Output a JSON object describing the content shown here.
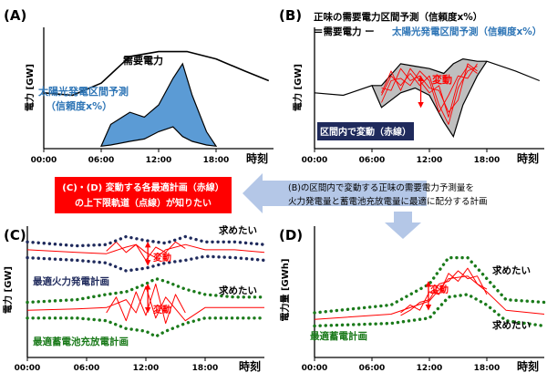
{
  "colors": {
    "demand": "#000000",
    "solar_fill": "#5b9bd5",
    "solar_text": "#2e75b6",
    "net_fill": "#bfbfbf",
    "red": "#ff0000",
    "navy": "#1f2a5c",
    "green": "#1a7a1a",
    "arrow": "#b4c7e7",
    "callout_bg": "#ff0000",
    "badge_bg": "#1f2a5c"
  },
  "common": {
    "x_ticks": [
      "00:00",
      "06:00",
      "12:00",
      "18:00"
    ],
    "x_axis_title": "時刻",
    "variation": "変動",
    "want": "求めたい"
  },
  "panel_a": {
    "label": "(A)",
    "y_axis_title": "電力 [GW]",
    "demand_label": "需要電力",
    "solar_label_line1": "太陽光発電区間予測",
    "solar_label_line2": "（信頼度x%）"
  },
  "panel_b": {
    "label": "(B)",
    "y_axis_title": "電力 [GW]",
    "formula_line1": "正味の需要電力区間予測（信頼度x%）",
    "formula_line2_prefix": "＝需要電力 ー",
    "formula_line2_highlight": "太陽光発電区間予測（信頼度x%）",
    "badge": "区間内で変動（赤線）"
  },
  "callout": {
    "line1": "(C)・(D) 変動する各最適計画（赤線）",
    "line2": "の上下限軌道（点線）が知りたい"
  },
  "note": {
    "line1": "(B)の区間内で変動する正味の需要電力予測量を",
    "line2": "火力発電量と蓄電池充放電量に最適に配分する計画"
  },
  "panel_c": {
    "label": "(C)",
    "y_axis_title": "電力 [GW]",
    "thermal_label": "最適火力発電計画",
    "battery_label": "最適蓄電池充放電計画"
  },
  "panel_d": {
    "label": "(D)",
    "y_axis_title": "電力量 [GWh]",
    "storage_label": "最適蓄電計画"
  },
  "chart_data": [
    {
      "panel": "A",
      "type": "area",
      "x_hours": [
        0,
        6,
        12,
        18,
        24
      ],
      "x_tick_labels": [
        "00:00",
        "06:00",
        "12:00",
        "18:00"
      ],
      "xlabel": "時刻",
      "ylabel": "電力 [GW]",
      "series": [
        {
          "name": "需要電力",
          "kind": "line",
          "x": [
            0,
            3,
            6,
            9,
            12,
            15,
            18,
            21,
            23.5
          ],
          "y": [
            46,
            44,
            54,
            76,
            80,
            80,
            74,
            64,
            56
          ]
        },
        {
          "name": "太陽光発電区間予測 上限",
          "kind": "band_upper",
          "x": [
            6,
            7,
            9,
            10.5,
            12,
            13.5,
            14.5,
            15.5,
            17,
            18
          ],
          "y": [
            2,
            20,
            30,
            26,
            36,
            58,
            70,
            44,
            14,
            2
          ]
        },
        {
          "name": "太陽光発電区間予測 下限",
          "kind": "band_lower",
          "x": [
            6,
            7,
            9,
            10.5,
            12,
            13.5,
            14.5,
            15.5,
            17,
            18
          ],
          "y": [
            2,
            3,
            6,
            8,
            14,
            18,
            10,
            6,
            3,
            2
          ]
        }
      ],
      "ylim": [
        0,
        100
      ]
    },
    {
      "panel": "B",
      "type": "area",
      "x_hours": [
        0,
        6,
        12,
        18,
        24
      ],
      "x_tick_labels": [
        "00:00",
        "06:00",
        "12:00",
        "18:00"
      ],
      "xlabel": "時刻",
      "ylabel": "電力 [GW]",
      "series": [
        {
          "name": "正味需要 上限",
          "kind": "band_upper",
          "x": [
            0,
            3,
            6,
            7,
            9,
            10.5,
            12,
            13.5,
            14.5,
            15.5,
            17,
            18,
            21,
            23.5
          ],
          "y": [
            46,
            44,
            52,
            52,
            70,
            68,
            66,
            62,
            70,
            74,
            72,
            72,
            64,
            56
          ]
        },
        {
          "name": "正味需要 下限",
          "kind": "band_lower",
          "x": [
            0,
            3,
            6,
            7,
            9,
            10.5,
            12,
            13.5,
            14.5,
            15.5,
            17,
            18,
            21,
            23.5
          ],
          "y": [
            46,
            44,
            52,
            34,
            46,
            50,
            44,
            22,
            10,
            36,
            60,
            72,
            64,
            56
          ]
        },
        {
          "name": "変動 (赤線) 1",
          "kind": "variation",
          "x": [
            7,
            8,
            9,
            10,
            11,
            12,
            13,
            14,
            15,
            16,
            17
          ],
          "y": [
            44,
            60,
            52,
            62,
            52,
            60,
            36,
            20,
            50,
            64,
            68
          ]
        },
        {
          "name": "変動 (赤線) 2",
          "kind": "variation",
          "x": [
            7,
            8,
            9,
            10,
            11,
            12,
            13,
            14,
            15,
            16,
            17
          ],
          "y": [
            50,
            48,
            66,
            56,
            60,
            50,
            48,
            30,
            40,
            70,
            64
          ]
        },
        {
          "name": "変動 (赤線) 3",
          "kind": "variation",
          "x": [
            7,
            8,
            9,
            10,
            11,
            12,
            13,
            14,
            15,
            16,
            17
          ],
          "y": [
            38,
            56,
            58,
            52,
            64,
            56,
            30,
            44,
            60,
            58,
            70
          ]
        },
        {
          "name": "変動 (赤線) 4",
          "kind": "variation",
          "x": [
            7,
            8,
            9,
            10,
            11,
            12,
            13,
            14,
            15,
            16,
            17
          ],
          "y": [
            46,
            64,
            48,
            66,
            56,
            46,
            52,
            26,
            56,
            68,
            62
          ]
        }
      ],
      "ylim": [
        0,
        100
      ]
    },
    {
      "panel": "C",
      "type": "line",
      "x_hours": [
        0,
        6,
        12,
        18,
        24
      ],
      "x_tick_labels": [
        "00:00",
        "06:00",
        "12:00",
        "18:00"
      ],
      "xlabel": "時刻",
      "ylabel": "電力 [GW]",
      "series": [
        {
          "name": "最適火力発電計画 上限 (点線)",
          "kind": "bound",
          "group": "thermal",
          "x": [
            0,
            5,
            8,
            10,
            12,
            14,
            16,
            18,
            21,
            24
          ],
          "y": [
            88,
            85,
            86,
            92,
            89,
            87,
            92,
            88,
            88,
            86
          ]
        },
        {
          "name": "最適火力発電計画 下限 (点線)",
          "kind": "bound",
          "group": "thermal",
          "x": [
            0,
            5,
            8,
            10,
            12,
            14,
            16,
            18,
            21,
            24
          ],
          "y": [
            76,
            74,
            72,
            66,
            68,
            72,
            74,
            77,
            76,
            74
          ]
        },
        {
          "name": "最適火力発電計画 (赤線)",
          "kind": "variation",
          "group": "thermal",
          "x": [
            0,
            5,
            8,
            10,
            11,
            12,
            13,
            14,
            16,
            18,
            21,
            24
          ],
          "y": [
            82,
            80,
            79,
            84,
            86,
            80,
            76,
            82,
            86,
            82,
            82,
            80
          ]
        },
        {
          "name": "最適火力発電計画 変動",
          "kind": "variation",
          "group": "thermal",
          "x": [
            8,
            9,
            10,
            11,
            12,
            13,
            14,
            15,
            16
          ],
          "y": [
            81,
            88,
            80,
            86,
            74,
            84,
            80,
            88,
            83
          ]
        },
        {
          "name": "最適蓄電池充放電計画 上限 (点線)",
          "kind": "bound",
          "group": "battery",
          "x": [
            0,
            5,
            8,
            10,
            12,
            13,
            14,
            16,
            18,
            21,
            24
          ],
          "y": [
            42,
            44,
            48,
            50,
            56,
            60,
            58,
            52,
            48,
            46,
            46
          ]
        },
        {
          "name": "最適蓄電池充放電計画 下限 (点線)",
          "kind": "bound",
          "group": "battery",
          "x": [
            0,
            5,
            8,
            10,
            12,
            13,
            14,
            16,
            18,
            21,
            24
          ],
          "y": [
            30,
            30,
            28,
            22,
            20,
            16,
            20,
            26,
            30,
            30,
            30
          ]
        },
        {
          "name": "最適蓄電池充放電計画 (赤線)",
          "kind": "variation",
          "group": "battery",
          "x": [
            0,
            5,
            8,
            10,
            11,
            12,
            13,
            14,
            16,
            18,
            21,
            24
          ],
          "y": [
            36,
            37,
            38,
            44,
            34,
            54,
            30,
            46,
            28,
            38,
            38,
            38
          ]
        },
        {
          "name": "最適蓄電池充放電計画 変動",
          "kind": "variation",
          "group": "battery",
          "x": [
            8,
            9,
            10,
            11,
            12,
            13,
            14,
            15,
            16
          ],
          "y": [
            34,
            46,
            28,
            50,
            32,
            56,
            26,
            48,
            34
          ]
        }
      ],
      "ylim": [
        0,
        100
      ]
    },
    {
      "panel": "D",
      "type": "line",
      "x_hours": [
        0,
        6,
        12,
        18,
        24
      ],
      "x_tick_labels": [
        "00:00",
        "06:00",
        "12:00",
        "18:00"
      ],
      "xlabel": "時刻",
      "ylabel": "電力量 [GWh]",
      "series": [
        {
          "name": "最適蓄電計画 上限 (点線)",
          "kind": "bound",
          "x": [
            0,
            8,
            12,
            14,
            16,
            18,
            20,
            24
          ],
          "y": [
            34,
            40,
            56,
            76,
            76,
            60,
            44,
            42
          ]
        },
        {
          "name": "最適蓄電計画 下限 (点線)",
          "kind": "bound",
          "x": [
            0,
            8,
            12,
            14,
            16,
            18,
            20,
            24
          ],
          "y": [
            24,
            26,
            30,
            46,
            48,
            40,
            28,
            24
          ]
        },
        {
          "name": "最適蓄電計画 (赤線)",
          "kind": "variation",
          "x": [
            0,
            8,
            12,
            14,
            16,
            18,
            20,
            24
          ],
          "y": [
            29,
            33,
            43,
            60,
            62,
            50,
            36,
            33
          ]
        },
        {
          "name": "最適蓄電計画 変動 1",
          "kind": "variation",
          "x": [
            9,
            10,
            11,
            12,
            13,
            14,
            15,
            16,
            17,
            18
          ],
          "y": [
            34,
            40,
            36,
            50,
            48,
            64,
            58,
            68,
            56,
            52
          ]
        },
        {
          "name": "最適蓄電計画 変動 2",
          "kind": "variation",
          "x": [
            9,
            10,
            11,
            12,
            13,
            14,
            15,
            16,
            17,
            18
          ],
          "y": [
            32,
            36,
            42,
            44,
            56,
            58,
            66,
            60,
            62,
            48
          ]
        }
      ],
      "ylim": [
        0,
        100
      ]
    }
  ]
}
